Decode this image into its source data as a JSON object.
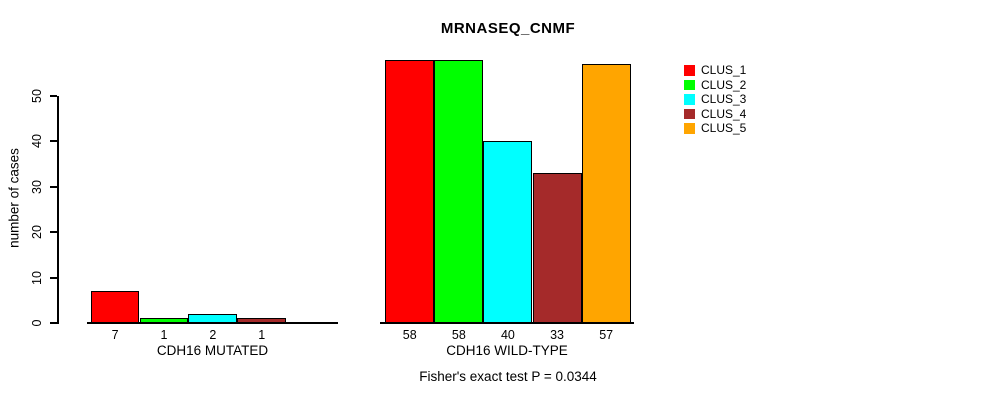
{
  "chart_data": {
    "type": "bar",
    "title": "MRNASEQ_CNMF",
    "ylabel": "number of cases",
    "xlabel": "",
    "yticks": [
      0,
      10,
      20,
      30,
      40,
      50
    ],
    "ylim": [
      0,
      58
    ],
    "grid": false,
    "series": [
      "CLUS_1",
      "CLUS_2",
      "CLUS_3",
      "CLUS_4",
      "CLUS_5"
    ],
    "legend": {
      "position": "top-right",
      "entries": [
        {
          "label": "CLUS_1",
          "color": "#FF0000"
        },
        {
          "label": "CLUS_2",
          "color": "#00FF00"
        },
        {
          "label": "CLUS_3",
          "color": "#00FFFF"
        },
        {
          "label": "CLUS_4",
          "color": "#A52A2A"
        },
        {
          "label": "CLUS_5",
          "color": "#FFA500"
        }
      ]
    },
    "groups": [
      {
        "category": "CDH16 MUTATED",
        "values": [
          7,
          1,
          2,
          1,
          0
        ],
        "bar_labels": [
          "7",
          "1",
          "2",
          "1",
          ""
        ]
      },
      {
        "category": "CDH16 WILD-TYPE",
        "values": [
          58,
          58,
          40,
          33,
          57
        ],
        "bar_labels": [
          "58",
          "58",
          "40",
          "33",
          "57"
        ]
      }
    ],
    "annotation": "Fisher's exact test P = 0.0344"
  }
}
